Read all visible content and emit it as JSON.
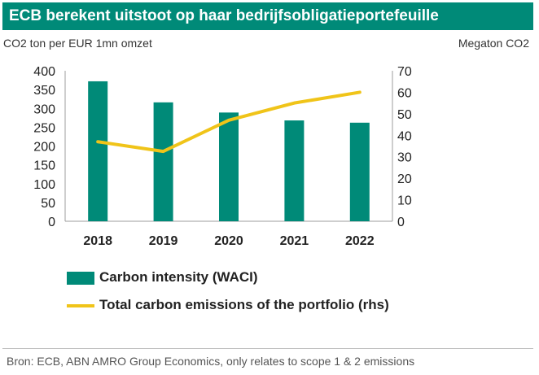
{
  "title": "ECB berekent uitstoot op haar bedrijfsobligatieportefeuille",
  "left_unit": "CO2 ton per EUR 1mn omzet",
  "right_unit": "Megaton CO2",
  "source": "Bron: ECB, ABN AMRO Group Economics, only relates to scope 1 & 2 emissions",
  "legend": {
    "bar_label": "Carbon intensity (WACI)",
    "line_label": "Total carbon emissions of the portfolio (rhs)"
  },
  "colors": {
    "bar": "#008a78",
    "line": "#f0c419",
    "title_bg": "#008a78"
  },
  "chart_data": {
    "type": "bar",
    "title": "ECB berekent uitstoot op haar bedrijfsobligatieportefeuille",
    "categories": [
      "2018",
      "2019",
      "2020",
      "2021",
      "2022"
    ],
    "series": [
      {
        "name": "Carbon intensity (WACI)",
        "type": "bar",
        "axis": "left",
        "values": [
          372,
          316,
          289,
          268,
          262
        ]
      },
      {
        "name": "Total carbon emissions of the portfolio (rhs)",
        "type": "line",
        "axis": "right",
        "values": [
          37,
          32.5,
          47,
          55,
          60
        ]
      }
    ],
    "ylabel": "CO2 ton per EUR 1mn omzet",
    "y2label": "Megaton CO2",
    "ylim": [
      0,
      400
    ],
    "y2lim": [
      0,
      70
    ],
    "yticks": [
      "0",
      "50",
      "100",
      "150",
      "200",
      "250",
      "300",
      "350",
      "400"
    ],
    "y2ticks": [
      "0",
      "10",
      "20",
      "30",
      "40",
      "50",
      "60",
      "70"
    ],
    "legend_position": "bottom"
  }
}
